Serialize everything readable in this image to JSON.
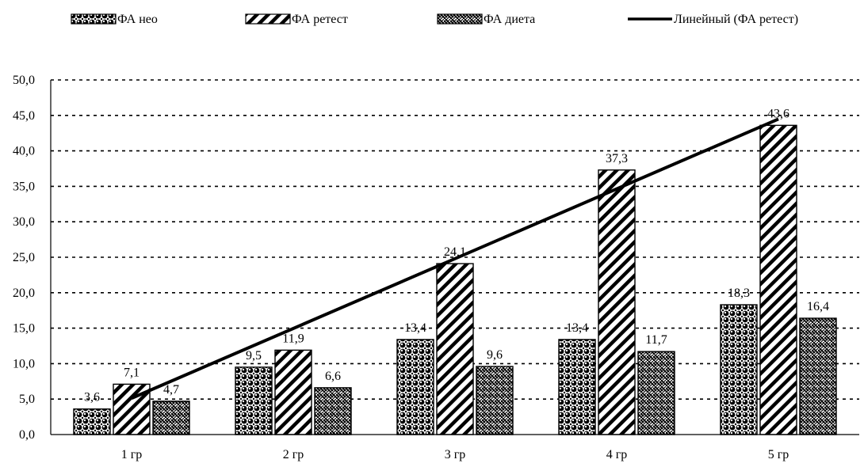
{
  "chart_data": {
    "type": "bar",
    "categories": [
      "1 гр",
      "2 гр",
      "3 гр",
      "4 гр",
      "5 гр"
    ],
    "series": [
      {
        "name": "ФА нео",
        "values": [
          3.6,
          9.5,
          13.4,
          13.4,
          18.3
        ],
        "labels": [
          "3,6",
          "9,5",
          "13,4",
          "13,4",
          "18,3"
        ],
        "pattern": "dots"
      },
      {
        "name": "ФА ретест",
        "values": [
          7.1,
          11.9,
          24.1,
          37.3,
          43.6
        ],
        "labels": [
          "7,1",
          "11,9",
          "24,1",
          "37,3",
          "43,6"
        ],
        "pattern": "diagonal"
      },
      {
        "name": "ФА диета",
        "values": [
          4.7,
          6.6,
          9.6,
          11.7,
          16.4
        ],
        "labels": [
          "4,7",
          "6,6",
          "9,6",
          "11,7",
          "16,4"
        ],
        "pattern": "weave"
      }
    ],
    "trendline": {
      "name": "Линейный (ФА ретест)",
      "of_series": "ФА ретест",
      "type": "linear"
    },
    "yticks": [
      "0,0",
      "5,0",
      "10,0",
      "15,0",
      "20,0",
      "25,0",
      "30,0",
      "35,0",
      "40,0",
      "45,0",
      "50,0"
    ],
    "ylim": [
      0,
      50
    ],
    "grid": "dashed horizontal",
    "legend_position": "top",
    "title": "",
    "xlabel": "",
    "ylabel": "",
    "colors": {
      "bar_stroke": "#000000",
      "trend": "#000000",
      "grid": "#000000",
      "background": "#ffffff"
    }
  }
}
